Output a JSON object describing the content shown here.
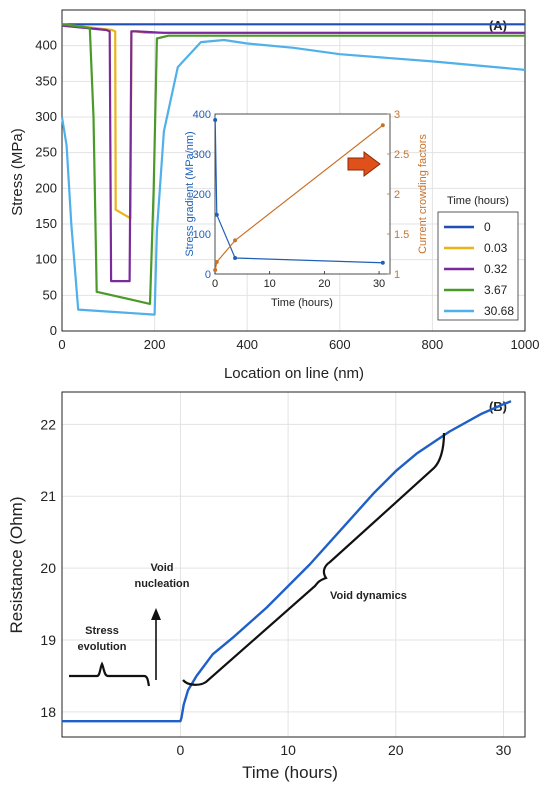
{
  "chart_data": [
    {
      "type": "line",
      "panel_label": "(A)",
      "xlabel": "Location on line (nm)",
      "ylabel": "Stress (MPa)",
      "xlim": [
        0,
        1000
      ],
      "ylim": [
        0,
        450
      ],
      "xticks": [
        0,
        200,
        400,
        600,
        800,
        1000
      ],
      "yticks": [
        0,
        50,
        100,
        150,
        200,
        250,
        300,
        350,
        400
      ],
      "grid": true,
      "legend": {
        "title": "Time (hours)",
        "placement": "bottom-right"
      },
      "series": [
        {
          "name": "0",
          "color": "#1f4fb4",
          "x": [
            0,
            1000
          ],
          "y": [
            430,
            430
          ]
        },
        {
          "name": "0.03",
          "color": "#e8b418",
          "x": [
            0,
            108,
            115,
            116,
            148,
            150,
            158,
            180,
            1000
          ],
          "y": [
            430,
            422,
            420,
            170,
            158,
            420,
            420,
            418,
            418
          ]
        },
        {
          "name": "0.32",
          "color": "#7b2a9a",
          "x": [
            0,
            96,
            103,
            106,
            146,
            150,
            162,
            220,
            1000
          ],
          "y": [
            428,
            422,
            420,
            70,
            70,
            420,
            420,
            418,
            418
          ]
        },
        {
          "name": "3.67",
          "color": "#4a9a2a",
          "x": [
            0,
            60,
            68,
            75,
            190,
            198,
            205,
            230,
            300,
            1000
          ],
          "y": [
            430,
            425,
            300,
            55,
            38,
            200,
            410,
            414,
            414,
            414
          ]
        },
        {
          "name": "30.68",
          "color": "#4fb0ea",
          "x": [
            0,
            10,
            20,
            35,
            200,
            205,
            220,
            250,
            300,
            350,
            400,
            500,
            600,
            700,
            800,
            900,
            1000
          ],
          "y": [
            300,
            260,
            150,
            30,
            23,
            140,
            280,
            370,
            405,
            408,
            403,
            397,
            388,
            383,
            378,
            372,
            366
          ]
        }
      ]
    },
    {
      "type": "line",
      "inset_of": "(A)",
      "xlabel": "Time (hours)",
      "ylabel": "Stress gradient (MPa/nm)",
      "ylabel_right": "Current crowding factors",
      "xlim": [
        0,
        32
      ],
      "ylim": [
        0,
        400
      ],
      "ylim_right": [
        1,
        3
      ],
      "xticks": [
        0,
        10,
        20,
        30
      ],
      "yticks": [
        0,
        100,
        200,
        300,
        400
      ],
      "yticks_right": [
        1,
        1.5,
        2,
        2.5,
        3
      ],
      "series": [
        {
          "name": "Stress gradient",
          "axis": "left",
          "color": "#1f5fb8",
          "x": [
            0.03,
            0.32,
            3.67,
            30.68
          ],
          "y": [
            385,
            148,
            40,
            28
          ]
        },
        {
          "name": "Current crowding factors",
          "axis": "right",
          "color": "#c8732a",
          "x": [
            0.03,
            0.32,
            3.67,
            30.68
          ],
          "y": [
            1.05,
            1.15,
            1.42,
            2.86
          ]
        }
      ]
    },
    {
      "type": "line",
      "panel_label": "(B)",
      "xlabel": "Time (hours)",
      "ylabel": "Resistance (Ohm)",
      "xlim": [
        -11,
        32
      ],
      "ylim": [
        17.65,
        22.45
      ],
      "xticks": [
        0,
        10,
        20,
        30
      ],
      "yticks": [
        18,
        19,
        20,
        21,
        22
      ],
      "grid": true,
      "series": [
        {
          "name": "Resistance",
          "color": "#1f5fc8",
          "x": [
            -11,
            0,
            0.1,
            0.3,
            0.7,
            1.5,
            3,
            5,
            8,
            10,
            12,
            15,
            18,
            20,
            22,
            25,
            28,
            30,
            30.7
          ],
          "y": [
            17.87,
            17.87,
            17.92,
            18.1,
            18.3,
            18.5,
            18.8,
            19.05,
            19.45,
            19.75,
            20.05,
            20.55,
            21.05,
            21.35,
            21.6,
            21.9,
            22.15,
            22.28,
            22.32
          ]
        }
      ],
      "annotations": [
        "Stress evolution",
        "Void nucleation",
        "Void dynamics"
      ]
    }
  ]
}
